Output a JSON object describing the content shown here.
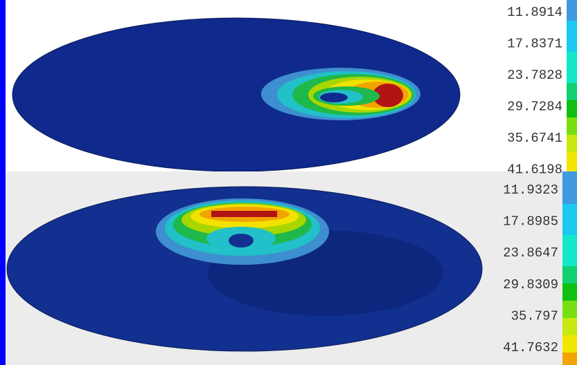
{
  "panels": [
    {
      "legend": [
        "11.8914",
        "17.8371",
        "23.7828",
        "29.7284",
        "35.6741",
        "41.6198"
      ]
    },
    {
      "legend": [
        "11.9323",
        "17.8985",
        "23.8647",
        "29.8309",
        "35.797",
        "41.7632"
      ]
    }
  ]
}
